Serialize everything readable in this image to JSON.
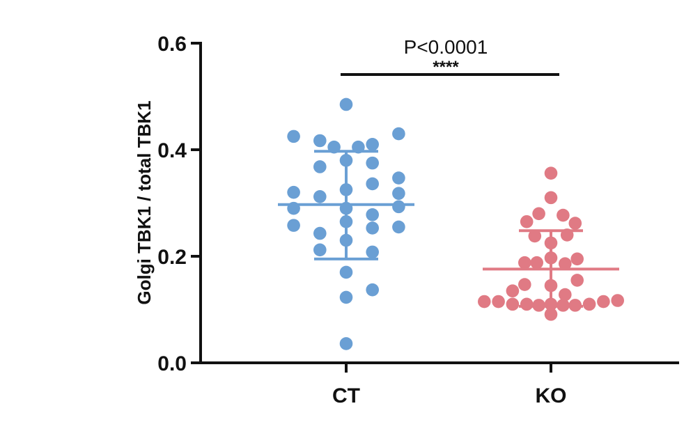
{
  "chart_data": {
    "type": "scatter",
    "chart_subtype": "dot-plot-with-mean-sd",
    "ylabel": "Golgi TBK1 / total TBK1",
    "xlabel": "",
    "ylim": [
      0,
      0.6
    ],
    "yticks": [
      {
        "value": 0.0,
        "label": "0.0"
      },
      {
        "value": 0.2,
        "label": "0.2"
      },
      {
        "value": 0.4,
        "label": "0.4"
      },
      {
        "value": 0.6,
        "label": "0.6"
      }
    ],
    "categories": [
      "CT",
      "KO"
    ],
    "series": [
      {
        "color": "#6a9fd4",
        "category": "CT",
        "mean": 0.297,
        "sd_low": 0.195,
        "sd_high": 0.397,
        "points": [
          {
            "x": -0.26,
            "y": 0.425
          },
          {
            "x": -0.13,
            "y": 0.417
          },
          {
            "x": 0.0,
            "y": 0.485
          },
          {
            "x": 0.13,
            "y": 0.41
          },
          {
            "x": 0.26,
            "y": 0.43
          },
          {
            "x": -0.06,
            "y": 0.405
          },
          {
            "x": 0.06,
            "y": 0.405
          },
          {
            "x": -0.13,
            "y": 0.368
          },
          {
            "x": 0.0,
            "y": 0.38
          },
          {
            "x": 0.13,
            "y": 0.375
          },
          {
            "x": 0.26,
            "y": 0.347
          },
          {
            "x": 0.13,
            "y": 0.336
          },
          {
            "x": 0.0,
            "y": 0.325
          },
          {
            "x": -0.26,
            "y": 0.32
          },
          {
            "x": 0.26,
            "y": 0.318
          },
          {
            "x": -0.13,
            "y": 0.312
          },
          {
            "x": -0.26,
            "y": 0.29
          },
          {
            "x": 0.0,
            "y": 0.29
          },
          {
            "x": 0.26,
            "y": 0.293
          },
          {
            "x": 0.13,
            "y": 0.278
          },
          {
            "x": 0.0,
            "y": 0.265
          },
          {
            "x": -0.26,
            "y": 0.258
          },
          {
            "x": 0.13,
            "y": 0.253
          },
          {
            "x": 0.26,
            "y": 0.255
          },
          {
            "x": -0.13,
            "y": 0.243
          },
          {
            "x": 0.0,
            "y": 0.23
          },
          {
            "x": -0.13,
            "y": 0.212
          },
          {
            "x": 0.13,
            "y": 0.208
          },
          {
            "x": 0.0,
            "y": 0.17
          },
          {
            "x": 0.13,
            "y": 0.137
          },
          {
            "x": 0.0,
            "y": 0.123
          },
          {
            "x": 0.0,
            "y": 0.036
          }
        ]
      },
      {
        "color": "#e07a84",
        "category": "KO",
        "mean": 0.176,
        "sd_low": 0.106,
        "sd_high": 0.248,
        "points": [
          {
            "x": 0.0,
            "y": 0.356
          },
          {
            "x": 0.0,
            "y": 0.31
          },
          {
            "x": -0.06,
            "y": 0.28
          },
          {
            "x": 0.06,
            "y": 0.277
          },
          {
            "x": -0.12,
            "y": 0.265
          },
          {
            "x": 0.12,
            "y": 0.262
          },
          {
            "x": -0.08,
            "y": 0.238
          },
          {
            "x": 0.08,
            "y": 0.24
          },
          {
            "x": 0.0,
            "y": 0.225
          },
          {
            "x": 0.0,
            "y": 0.197
          },
          {
            "x": 0.13,
            "y": 0.195
          },
          {
            "x": -0.13,
            "y": 0.188
          },
          {
            "x": -0.07,
            "y": 0.188
          },
          {
            "x": 0.07,
            "y": 0.186
          },
          {
            "x": 0.13,
            "y": 0.155
          },
          {
            "x": -0.13,
            "y": 0.147
          },
          {
            "x": 0.0,
            "y": 0.145
          },
          {
            "x": -0.19,
            "y": 0.135
          },
          {
            "x": 0.07,
            "y": 0.128
          },
          {
            "x": -0.33,
            "y": 0.115
          },
          {
            "x": -0.26,
            "y": 0.115
          },
          {
            "x": -0.19,
            "y": 0.11
          },
          {
            "x": -0.12,
            "y": 0.11
          },
          {
            "x": -0.06,
            "y": 0.108
          },
          {
            "x": 0.0,
            "y": 0.11
          },
          {
            "x": 0.06,
            "y": 0.108
          },
          {
            "x": 0.12,
            "y": 0.108
          },
          {
            "x": 0.19,
            "y": 0.11
          },
          {
            "x": 0.26,
            "y": 0.115
          },
          {
            "x": 0.33,
            "y": 0.117
          },
          {
            "x": 0.0,
            "y": 0.091
          }
        ]
      }
    ],
    "annotation": {
      "pvalue": "P<0.0001",
      "stars": "****"
    }
  }
}
